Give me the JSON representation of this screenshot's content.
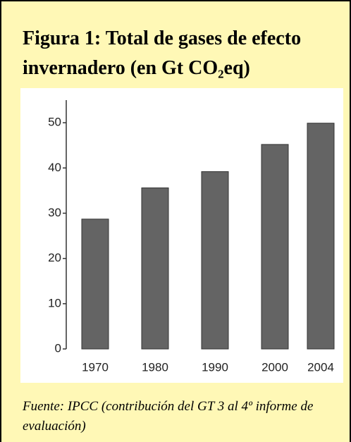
{
  "chart_data": {
    "type": "bar",
    "title": "Figura 1: Total de gases de efecto invernadero (en Gt CO₂eq)",
    "source": "Fuente: IPCC (contribución del GT 3 al 4º informe de evaluación)",
    "categories": [
      "1970",
      "1980",
      "1990",
      "2000",
      "2004"
    ],
    "values": [
      28.7,
      35.6,
      39.2,
      45.2,
      49.9
    ],
    "color": "#646464",
    "ylim": [
      0,
      55
    ],
    "yticks": [
      0,
      10,
      20,
      30,
      40,
      50
    ],
    "grid": false
  }
}
